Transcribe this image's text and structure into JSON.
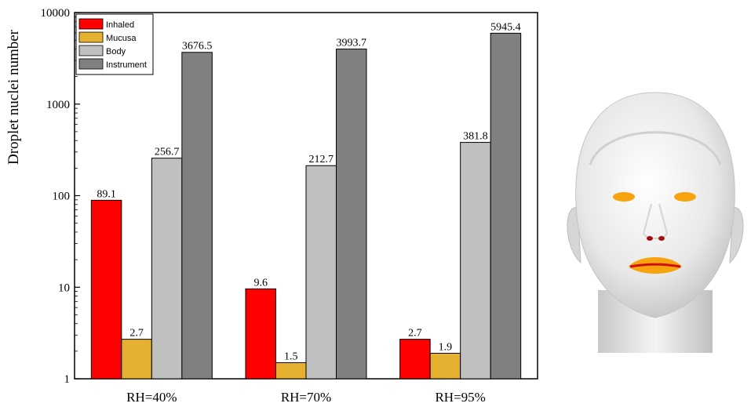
{
  "chart_data": {
    "type": "bar",
    "categories": [
      "RH=40%",
      "RH=70%",
      "RH=95%"
    ],
    "series": [
      {
        "name": "Inhaled",
        "color": "#ff0000",
        "values": [
          89.1,
          9.6,
          2.7
        ]
      },
      {
        "name": "Mucusa",
        "color": "#e6b030",
        "values": [
          2.7,
          1.5,
          1.9
        ]
      },
      {
        "name": "Body",
        "color": "#c0c0c0",
        "values": [
          256.7,
          212.7,
          381.8
        ]
      },
      {
        "name": "Instrument",
        "color": "#808080",
        "values": [
          3676.5,
          3993.7,
          5945.4
        ]
      }
    ],
    "data_labels": [
      [
        "89.1",
        "9.6",
        "2.7"
      ],
      [
        "2.7",
        "1.5",
        "1.9"
      ],
      [
        "256.7",
        "212.7",
        "381.8"
      ],
      [
        "3676.5",
        "3993.7",
        "5945.4"
      ]
    ],
    "ylabel": "Droplet nuclei number",
    "xlabel": "",
    "yscale": "log",
    "ylim": [
      1,
      10000
    ],
    "yticks": [
      1,
      10,
      100,
      1000,
      10000
    ],
    "ytick_labels": [
      "1",
      "10",
      "100",
      "1000",
      "10000"
    ],
    "grid": false,
    "legend_position": "top-left"
  }
}
